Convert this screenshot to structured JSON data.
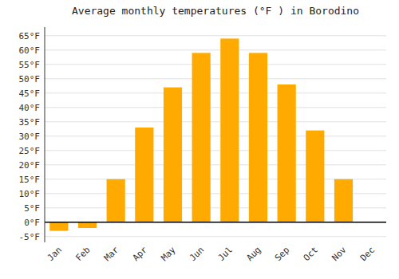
{
  "chart_data": {
    "type": "bar",
    "title": "Average monthly temperatures (°F ) in Borodino",
    "categories": [
      "Jan",
      "Feb",
      "Mar",
      "Apr",
      "May",
      "Jun",
      "Jul",
      "Aug",
      "Sep",
      "Oct",
      "Nov",
      "Dec"
    ],
    "values": [
      -3,
      -2,
      15,
      33,
      47,
      59,
      64,
      59,
      48,
      32,
      15,
      0
    ],
    "color": "#FFAA00",
    "ylim": [
      -7,
      68
    ],
    "yticks": [
      {
        "value": -5,
        "label": "-5°F"
      },
      {
        "value": 0,
        "label": "0°F"
      },
      {
        "value": 5,
        "label": "5°F"
      },
      {
        "value": 10,
        "label": "10°F"
      },
      {
        "value": 15,
        "label": "15°F"
      },
      {
        "value": 20,
        "label": "20°F"
      },
      {
        "value": 25,
        "label": "25°F"
      },
      {
        "value": 30,
        "label": "30°F"
      },
      {
        "value": 35,
        "label": "35°F"
      },
      {
        "value": 40,
        "label": "40°F"
      },
      {
        "value": 45,
        "label": "45°F"
      },
      {
        "value": 50,
        "label": "50°F"
      },
      {
        "value": 55,
        "label": "55°F"
      },
      {
        "value": 60,
        "label": "60°F"
      },
      {
        "value": 65,
        "label": "65°F"
      }
    ],
    "grid": true
  }
}
